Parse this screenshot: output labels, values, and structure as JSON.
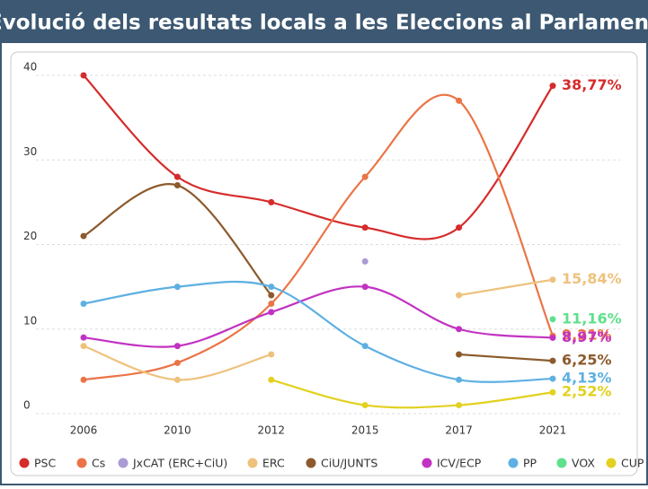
{
  "chart_data": {
    "type": "line",
    "title": "Evolució dels resultats locals a les Eleccions al Parlament",
    "categories": [
      "2006",
      "2010",
      "2012",
      "2015",
      "2017",
      "2021"
    ],
    "ylim": [
      0,
      40
    ],
    "yticks": [
      0,
      10,
      20,
      30,
      40
    ],
    "grid": true,
    "series": [
      {
        "name": "PSC",
        "color": "#d62b2b",
        "values": [
          40,
          28,
          25,
          22,
          22,
          38.77
        ],
        "value_labels": [
          null,
          null,
          null,
          null,
          null,
          "38,77%"
        ]
      },
      {
        "name": "Cs",
        "color": "#ea7447",
        "values": [
          4,
          6,
          13,
          28,
          37,
          9.21
        ],
        "value_labels": [
          null,
          null,
          null,
          null,
          null,
          "9,21%"
        ]
      },
      {
        "name": "JxCAT (ERC+CiU)",
        "color": "#a99bd3",
        "values": [
          null,
          null,
          null,
          18,
          null,
          null
        ]
      },
      {
        "name": "ERC",
        "color": "#eec27c",
        "values": [
          8,
          4,
          7,
          null,
          14,
          15.84
        ],
        "value_labels": [
          null,
          null,
          null,
          null,
          null,
          "15,84%"
        ]
      },
      {
        "name": "CiU/JUNTS",
        "color": "#8c5a2c",
        "values": [
          21,
          27,
          14,
          null,
          7,
          6.25
        ],
        "value_labels": [
          null,
          null,
          null,
          null,
          null,
          "6,25%"
        ]
      },
      {
        "name": "ICV/ECP",
        "color": "#c232c2",
        "values": [
          9,
          8,
          12,
          15,
          10,
          8.97
        ],
        "value_labels": [
          null,
          null,
          null,
          null,
          null,
          "8,97%"
        ]
      },
      {
        "name": "PP",
        "color": "#5eb0e2",
        "values": [
          13,
          15,
          15,
          8,
          4,
          4.13
        ],
        "value_labels": [
          null,
          null,
          null,
          null,
          null,
          "4,13%"
        ]
      },
      {
        "name": "VOX",
        "color": "#5fe08c",
        "values": [
          null,
          null,
          null,
          null,
          null,
          11.16
        ],
        "value_labels": [
          null,
          null,
          null,
          null,
          null,
          "11,16%"
        ]
      },
      {
        "name": "CUP",
        "color": "#e2d11f",
        "values": [
          null,
          null,
          4,
          1,
          1,
          2.52
        ],
        "value_labels": [
          null,
          null,
          null,
          null,
          null,
          "2,52%"
        ]
      }
    ]
  }
}
